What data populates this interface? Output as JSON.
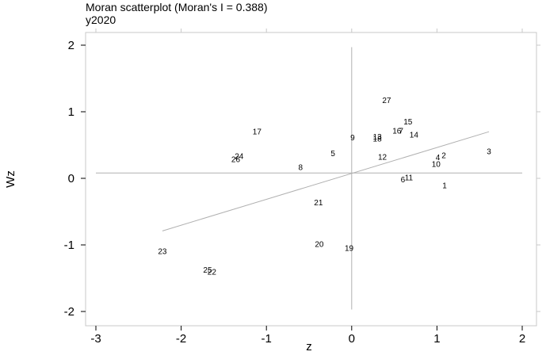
{
  "chart_data": {
    "type": "scatter",
    "title": "Moran scatterplot (Moran's I = 0.388)",
    "subtitle": "y2020",
    "xlabel": "z",
    "ylabel": "Wz",
    "xlim": [
      -3.2,
      2.1
    ],
    "ylim": [
      -2.1,
      2.0
    ],
    "xticks": [
      "-3",
      "-2",
      "-1",
      "0",
      "1",
      "2"
    ],
    "xtick_values": [
      -3,
      -2,
      -1,
      0,
      1,
      2
    ],
    "yticks": [
      "-2",
      "-1",
      "0",
      "1",
      "2"
    ],
    "ytick_values": [
      -2,
      -1,
      0,
      1,
      2
    ],
    "grid": false,
    "points": [
      {
        "label": "1",
        "x": 1.09,
        "y": -0.1
      },
      {
        "label": "2",
        "x": 1.08,
        "y": 0.35
      },
      {
        "label": "3",
        "x": 1.61,
        "y": 0.41
      },
      {
        "label": "4",
        "x": 1.01,
        "y": 0.32
      },
      {
        "label": "5",
        "x": -0.22,
        "y": 0.38
      },
      {
        "label": "6",
        "x": 0.6,
        "y": -0.01
      },
      {
        "label": "7",
        "x": 0.58,
        "y": 0.72
      },
      {
        "label": "8",
        "x": -0.6,
        "y": 0.17
      },
      {
        "label": "9",
        "x": 0.01,
        "y": 0.62
      },
      {
        "label": "10",
        "x": 0.99,
        "y": 0.22
      },
      {
        "label": "11",
        "x": 0.67,
        "y": 0.02
      },
      {
        "label": "12",
        "x": 0.36,
        "y": 0.33
      },
      {
        "label": "13",
        "x": 0.3,
        "y": 0.63
      },
      {
        "label": "14",
        "x": 0.73,
        "y": 0.66
      },
      {
        "label": "15",
        "x": 0.66,
        "y": 0.86
      },
      {
        "label": "16",
        "x": 0.53,
        "y": 0.72
      },
      {
        "label": "17",
        "x": -1.11,
        "y": 0.71
      },
      {
        "label": "18",
        "x": 0.3,
        "y": 0.6
      },
      {
        "label": "19",
        "x": -0.03,
        "y": -1.04
      },
      {
        "label": "20",
        "x": -0.38,
        "y": -0.98
      },
      {
        "label": "21",
        "x": -0.39,
        "y": -0.36
      },
      {
        "label": "22",
        "x": -1.64,
        "y": -1.4
      },
      {
        "label": "23",
        "x": -2.22,
        "y": -1.09
      },
      {
        "label": "24",
        "x": -1.32,
        "y": 0.34
      },
      {
        "label": "25",
        "x": -1.69,
        "y": -1.37
      },
      {
        "label": "26",
        "x": -1.36,
        "y": 0.29
      },
      {
        "label": "27",
        "x": 0.41,
        "y": 1.18
      }
    ],
    "regression_line": {
      "x": [
        -2.22,
        1.61
      ],
      "y": [
        -0.79,
        0.7
      ]
    },
    "reference_lines": {
      "x": 0.0,
      "y": 0.08
    }
  }
}
